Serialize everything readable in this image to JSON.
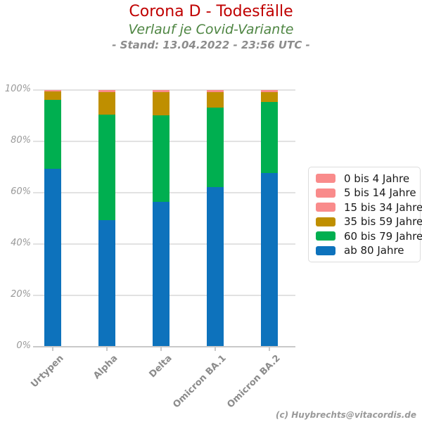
{
  "header": {
    "title": "Corona D - Todesfälle",
    "subtitle": "Verlauf je Covid-Variante",
    "stand": "- Stand: 13.04.2022 - 23:56 UTC -"
  },
  "footer": {
    "credit": "(c) Huybrechts@vitacordis.de"
  },
  "palette": {
    "title_red": "#C00000",
    "subtitle_green": "#4E8542",
    "stand_gray": "#8C8C8C",
    "axis_label_gray": "#999999",
    "grid_gray": "#E2E2E2"
  },
  "chart_data": {
    "type": "bar",
    "stacked": true,
    "orientation": "vertical",
    "title": "Corona D - Todesfälle",
    "subtitle": "Verlauf je Covid-Variante",
    "xlabel": "",
    "ylabel": "",
    "ylim": [
      0,
      100
    ],
    "grid": true,
    "legend_position": "right",
    "y_ticks": [
      "0%",
      "20%",
      "40%",
      "60%",
      "80%",
      "100%"
    ],
    "categories": [
      "Urtypen",
      "Alpha",
      "Delta",
      "Omicron BA.1",
      "Omicron BA.2"
    ],
    "series": [
      {
        "name": "0 bis 4 Jahre",
        "color": "#F98B8B",
        "values": [
          0.1,
          0.1,
          0.1,
          0.1,
          0.1
        ]
      },
      {
        "name": "5 bis 14 Jahre",
        "color": "#F98B8B",
        "values": [
          0.1,
          0.1,
          0.1,
          0.1,
          0.1
        ]
      },
      {
        "name": "15 bis 34 Jahre",
        "color": "#F98B8B",
        "values": [
          0.2,
          0.6,
          0.6,
          0.6,
          0.6
        ]
      },
      {
        "name": "35 bis 59 Jahre",
        "color": "#BF8F00",
        "values": [
          3.3,
          8.9,
          9.0,
          6.1,
          3.9
        ]
      },
      {
        "name": "60 bis 79 Jahre",
        "color": "#00AF50",
        "values": [
          27.0,
          41.0,
          33.7,
          30.9,
          27.6
        ]
      },
      {
        "name": "ab 80 Jahre",
        "color": "#0D72BC",
        "values": [
          69.3,
          49.3,
          56.5,
          62.2,
          67.7
        ]
      }
    ]
  }
}
